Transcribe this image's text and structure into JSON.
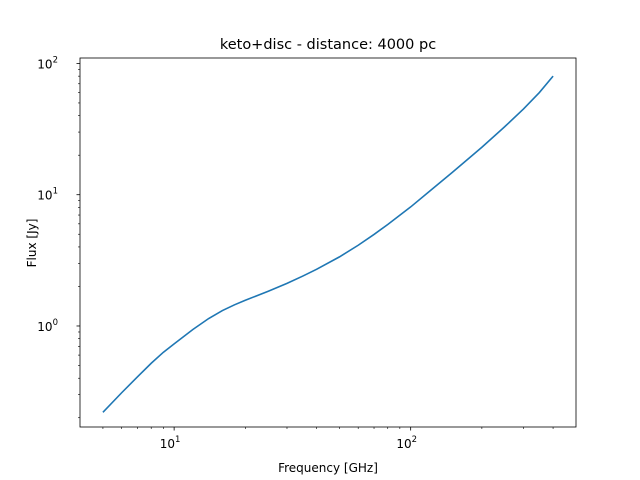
{
  "chart_data": {
    "type": "line",
    "title": "keto+disc - distance: 4000 pc",
    "xlabel": "Frequency [GHz]",
    "ylabel": "Flux [Jy]",
    "xscale": "log",
    "yscale": "log",
    "xlim": [
      4.0,
      500
    ],
    "ylim": [
      0.17,
      110
    ],
    "grid": false,
    "x_major_ticks": [
      {
        "value": 10,
        "base": "10",
        "exp": "1"
      },
      {
        "value": 100,
        "base": "10",
        "exp": "2"
      }
    ],
    "y_major_ticks": [
      {
        "value": 1,
        "base": "10",
        "exp": "0"
      },
      {
        "value": 10,
        "base": "10",
        "exp": "1"
      },
      {
        "value": 100,
        "base": "10",
        "exp": "2"
      }
    ],
    "series": [
      {
        "color": "#1f77b4",
        "x": [
          5,
          6,
          7,
          8,
          9,
          10,
          12,
          14,
          16,
          18,
          20,
          25,
          30,
          35,
          40,
          50,
          60,
          70,
          80,
          100,
          120,
          150,
          200,
          250,
          300,
          350,
          400
        ],
        "y": [
          0.22,
          0.31,
          0.41,
          0.52,
          0.63,
          0.73,
          0.94,
          1.14,
          1.31,
          1.45,
          1.57,
          1.84,
          2.11,
          2.4,
          2.7,
          3.36,
          4.12,
          4.98,
          5.93,
          8.07,
          10.6,
          14.8,
          23.0,
          33.0,
          45.0,
          60.0,
          80.0
        ]
      }
    ]
  }
}
